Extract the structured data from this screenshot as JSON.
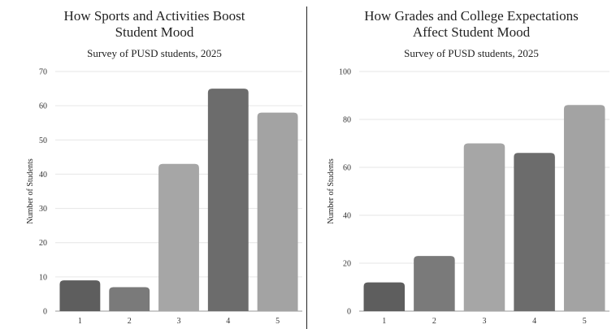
{
  "chart_data": [
    {
      "type": "bar",
      "title_lines": [
        "How Sports and Activities Boost",
        "Student Mood"
      ],
      "subtitle": "Survey of PUSD students, 2025",
      "xlabel": "",
      "ylabel": "Number of Students",
      "categories": [
        "1",
        "2",
        "3",
        "4",
        "5"
      ],
      "values": [
        9,
        7,
        43,
        65,
        58
      ],
      "bar_colors": [
        "#5e5e5e",
        "#7a7a7a",
        "#a6a6a6",
        "#6c6c6c",
        "#a3a3a3"
      ],
      "ylim": [
        0,
        70
      ],
      "yticks": [
        0,
        10,
        20,
        30,
        40,
        50,
        60,
        70
      ],
      "grid": true
    },
    {
      "type": "bar",
      "title_lines": [
        "How Grades and College Expectations",
        "Affect Student Mood"
      ],
      "subtitle": "Survey of PUSD students, 2025",
      "xlabel": "",
      "ylabel": "Number of Students",
      "categories": [
        "1",
        "2",
        "3",
        "4",
        "5"
      ],
      "values": [
        12,
        23,
        70,
        66,
        86
      ],
      "bar_colors": [
        "#5e5e5e",
        "#7a7a7a",
        "#a6a6a6",
        "#6c6c6c",
        "#a3a3a3"
      ],
      "ylim": [
        0,
        100
      ],
      "yticks": [
        0,
        20,
        40,
        60,
        80,
        100
      ],
      "grid": true
    }
  ]
}
